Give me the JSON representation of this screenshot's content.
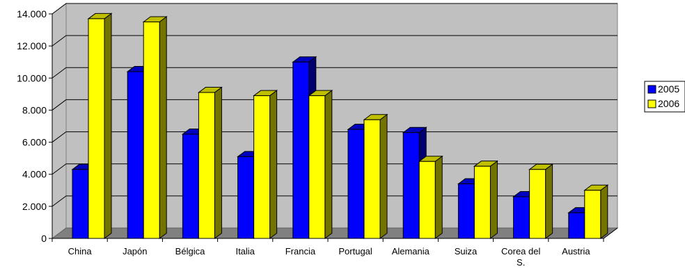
{
  "chart_data": {
    "type": "bar",
    "style": "3d-clustered-column",
    "categories": [
      "China",
      "Japón",
      "Bélgica",
      "Italia",
      "Francia",
      "Portugal",
      "Alemania",
      "Suiza",
      "Corea del S.",
      "Austria"
    ],
    "series": [
      {
        "name": "2005",
        "color": "#0000ff",
        "values": [
          4300,
          10400,
          6500,
          5100,
          11000,
          6800,
          6600,
          3400,
          2600,
          1600
        ]
      },
      {
        "name": "2006",
        "color": "#ffff00",
        "values": [
          13700,
          13500,
          9100,
          8900,
          8900,
          7400,
          4800,
          4500,
          4300,
          3000
        ]
      }
    ],
    "y_ticks": [
      "0",
      "2.000",
      "4.000",
      "6.000",
      "8.000",
      "10.000",
      "12.000",
      "14.000"
    ],
    "ylim": [
      0,
      14000
    ],
    "grid": true,
    "legend_position": "right",
    "colors": {
      "wall": "#c0c0c0",
      "floor": "#808080",
      "grid": "#000000"
    }
  }
}
